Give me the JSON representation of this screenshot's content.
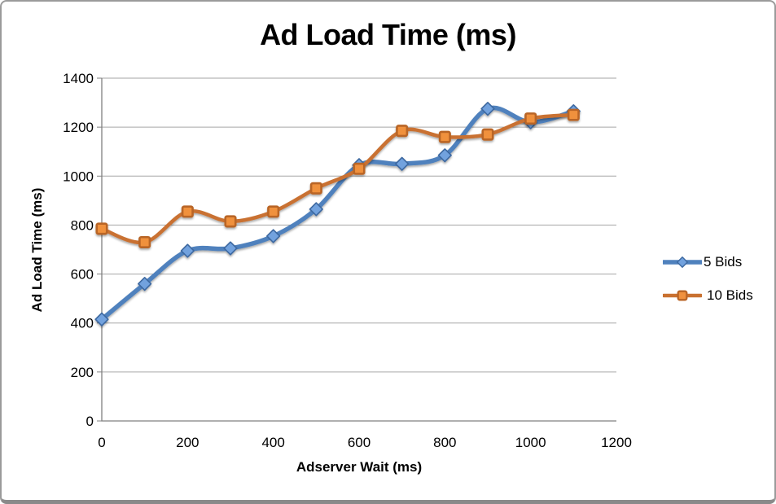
{
  "chart_data": {
    "type": "line",
    "title": "Ad Load Time (ms)",
    "xlabel": "Adserver Wait (ms)",
    "ylabel": "Ad Load Time (ms)",
    "x": [
      0,
      100,
      200,
      300,
      400,
      500,
      600,
      700,
      800,
      900,
      1000,
      1100
    ],
    "series": [
      {
        "name": "5 Bids",
        "line_color": "#4F81BD",
        "line_width": 5.5,
        "marker": "diamond",
        "marker_fill": "#72A2DE",
        "marker_stroke": "#3C68A0",
        "values": [
          415,
          560,
          695,
          705,
          755,
          865,
          1045,
          1050,
          1085,
          1275,
          1220,
          1265
        ]
      },
      {
        "name": "10 Bids",
        "line_color": "#C97130",
        "line_width": 4.5,
        "marker": "square",
        "marker_fill": "#F0913E",
        "marker_stroke": "#B96526",
        "values": [
          785,
          730,
          855,
          815,
          855,
          950,
          1030,
          1185,
          1160,
          1170,
          1235,
          1250
        ]
      }
    ],
    "xlim": [
      0,
      1200
    ],
    "ylim": [
      0,
      1400
    ],
    "x_ticks": [
      0,
      200,
      400,
      600,
      800,
      1000,
      1200
    ],
    "y_ticks": [
      0,
      200,
      400,
      600,
      800,
      1000,
      1200,
      1400
    ],
    "grid": true,
    "smooth": true,
    "legend_position": "right",
    "grid_color": "#A6A6A6",
    "axis_color": "#808080",
    "text_color": "#000000",
    "background": "#FFFFFF",
    "frame_border_color": "#9B9B9B"
  }
}
